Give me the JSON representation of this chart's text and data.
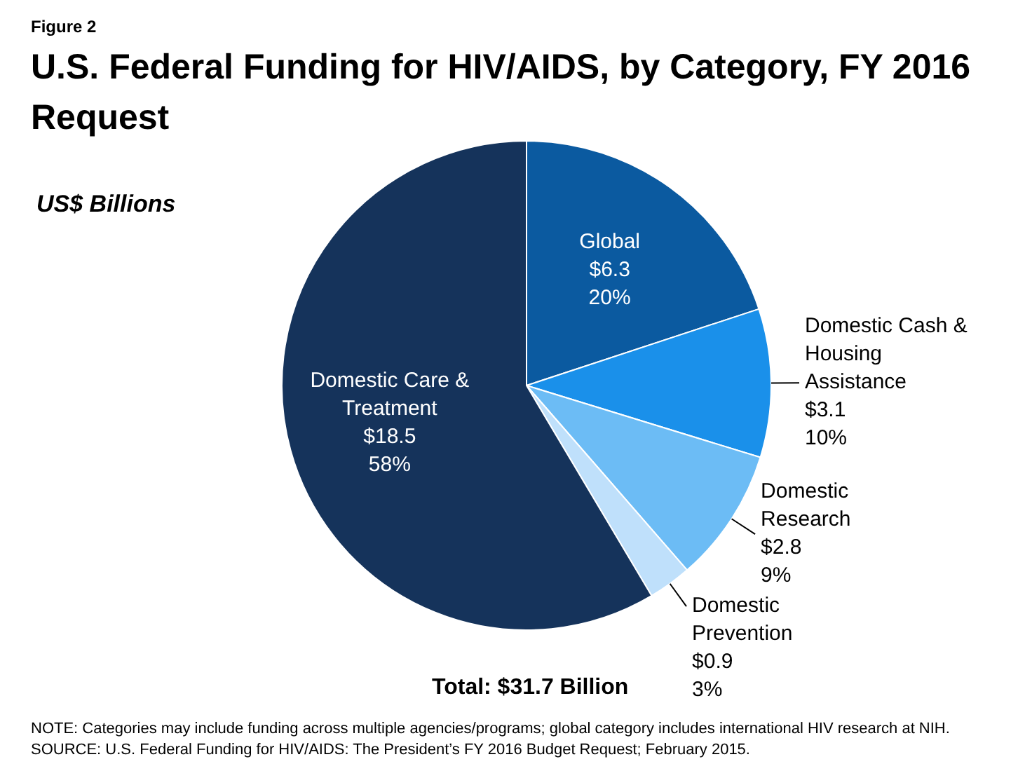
{
  "chart_data": {
    "type": "pie",
    "title": "U.S. Federal Funding for HIV/AIDS, by Category, FY 2016 Request",
    "categories": [
      "Global",
      "Domestic Cash & Housing Assistance",
      "Domestic Research",
      "Domestic Prevention",
      "Domestic Care & Treatment"
    ],
    "values": [
      6.3,
      3.1,
      2.8,
      0.9,
      18.5
    ],
    "value_labels": [
      "$6.3\n20%",
      "$3.1\n10%",
      "$2.8\n9%",
      "$0.9\n3%",
      "$18.5\n58%"
    ],
    "colors": [
      "#0b5aa0",
      "#1a90ea",
      "#6cbcf5",
      "#bfe0fb",
      "#15335b"
    ],
    "legend": false,
    "annotations": [
      "Figure 2",
      "US$ Billions",
      "Total: $31.7 Billion",
      "NOTE: Categories may include funding across multiple agencies/programs; global category includes international HIV research at NIH.",
      "SOURCE: U.S. Federal Funding for HIV/AIDS: The President’s FY 2016 Budget Request; February 2015."
    ]
  }
}
